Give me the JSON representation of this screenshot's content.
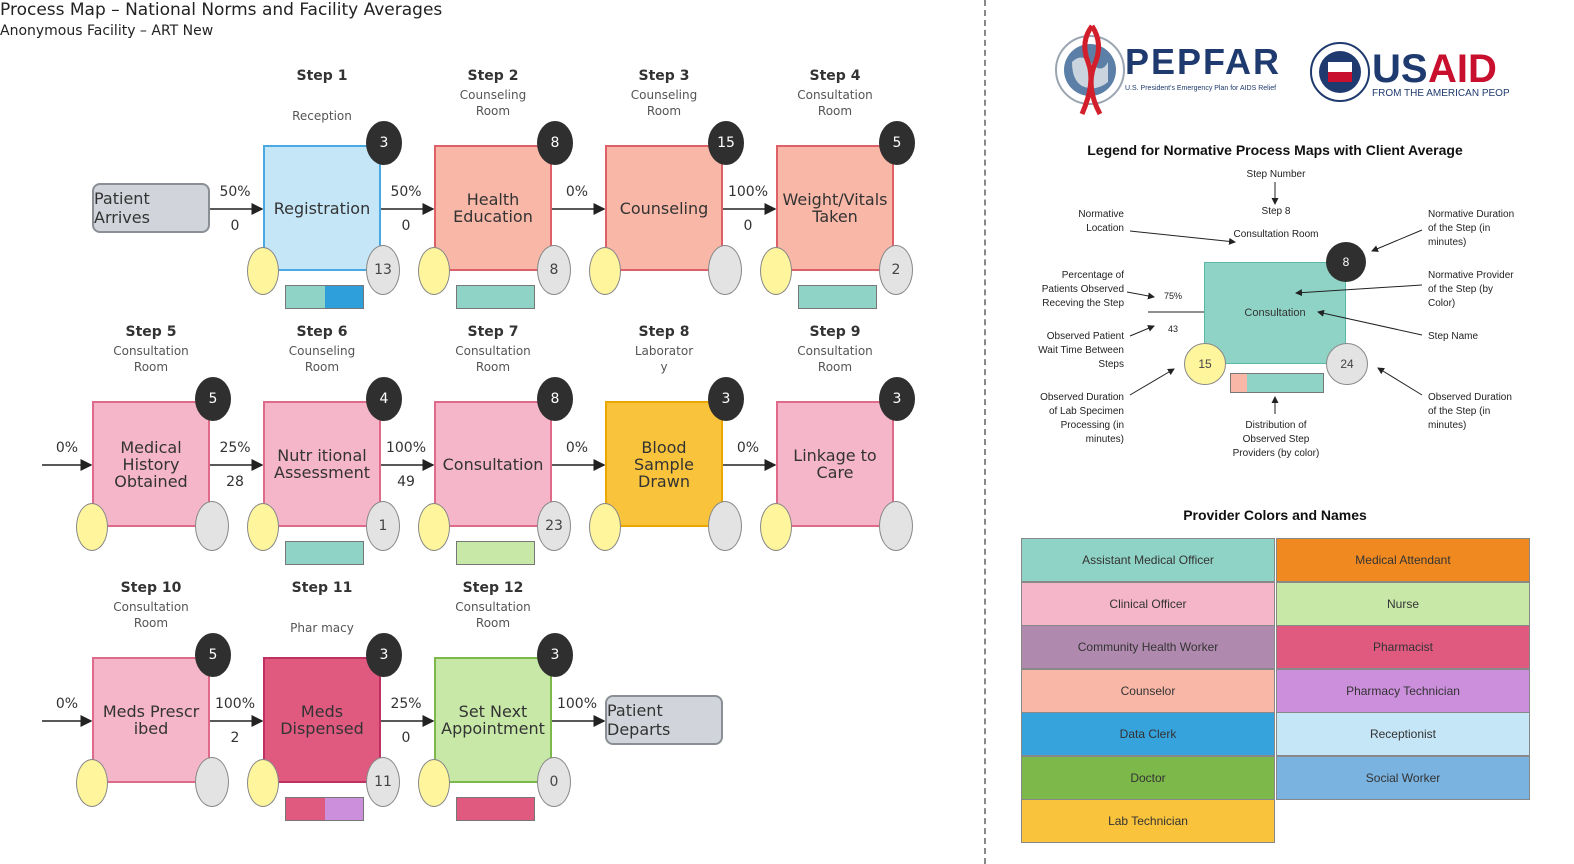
{
  "header": {
    "title": "Process Map – National Norms and Facility Averages",
    "subtitle": "Anonymous Facility – ART New"
  },
  "endpoints": {
    "start": "Patient Arrives",
    "end": "Patient Departs"
  },
  "steps": [
    {
      "step_label": "Step 1",
      "location": "Reception",
      "name": "Registration",
      "normative_duration": "3",
      "observed_duration": "13",
      "pct_in": "50%",
      "wait_in": "0",
      "color": "#c5e6f7",
      "border": "#4aa9e0",
      "providers": [
        "#8fd3c7",
        "#2e9fdb"
      ]
    },
    {
      "step_label": "Step 2",
      "location": "Counseling Room",
      "name": "Health Education",
      "normative_duration": "8",
      "observed_duration": "8",
      "pct_in": "50%",
      "wait_in": "0",
      "color": "#f9b7a7",
      "border": "#e0606a",
      "providers": [
        "#8fd3c7"
      ]
    },
    {
      "step_label": "Step 3",
      "location": "Counseling Room",
      "name": "Counseling",
      "normative_duration": "15",
      "observed_duration": "",
      "pct_in": "0%",
      "wait_in": "",
      "color": "#f9b7a7",
      "border": "#e0606a",
      "providers": []
    },
    {
      "step_label": "Step 4",
      "location": "Consultation Room",
      "name": "Weight/Vitals Taken",
      "normative_duration": "5",
      "observed_duration": "2",
      "pct_in": "100%",
      "wait_in": "0",
      "color": "#f9b7a7",
      "border": "#e0606a",
      "providers": [
        "#8fd3c7"
      ]
    },
    {
      "step_label": "Step 5",
      "location": "Consultation Room",
      "name": "Medical History Obtained",
      "normative_duration": "5",
      "observed_duration": "",
      "pct_in": "0%",
      "wait_in": "",
      "color": "#f4b6c8",
      "border": "#e06a8a",
      "providers": []
    },
    {
      "step_label": "Step 6",
      "location": "Counseling Room",
      "name": "Nutr itional Assessment",
      "normative_duration": "4",
      "observed_duration": "1",
      "pct_in": "25%",
      "wait_in": "28",
      "color": "#f4b6c8",
      "border": "#e06a8a",
      "providers": [
        "#8fd3c7"
      ]
    },
    {
      "step_label": "Step 7",
      "location": "Consultation Room",
      "name": "Consultation",
      "normative_duration": "8",
      "observed_duration": "23",
      "pct_in": "100%",
      "wait_in": "49",
      "color": "#f4b6c8",
      "border": "#e06a8a",
      "providers": [
        "#c8e8a8"
      ]
    },
    {
      "step_label": "Step 8",
      "location": "Laborator y",
      "name": "Blood Sample Drawn",
      "normative_duration": "3",
      "observed_duration": "",
      "pct_in": "0%",
      "wait_in": "",
      "color": "#f9c33b",
      "border": "#e9a700",
      "providers": []
    },
    {
      "step_label": "Step 9",
      "location": "Consultation Room",
      "name": "Linkage to Care",
      "normative_duration": "3",
      "observed_duration": "",
      "pct_in": "0%",
      "wait_in": "",
      "color": "#f4b6c8",
      "border": "#e06a8a",
      "providers": []
    },
    {
      "step_label": "Step 10",
      "location": "Consultation Room",
      "name": "Meds Prescr ibed",
      "normative_duration": "5",
      "observed_duration": "",
      "pct_in": "0%",
      "wait_in": "",
      "color": "#f4b6c8",
      "border": "#e06a8a",
      "providers": []
    },
    {
      "step_label": "Step 11",
      "location": "Phar macy",
      "name": "Meds Dispensed",
      "normative_duration": "3",
      "observed_duration": "11",
      "pct_in": "100%",
      "wait_in": "2",
      "color": "#e05a80",
      "border": "#c03060",
      "providers": [
        "#e05a80",
        "#cc8fdc"
      ]
    },
    {
      "step_label": "Step 12",
      "location": "Consultation Room",
      "name": "Set Next Appointment",
      "normative_duration": "3",
      "observed_duration": "0",
      "pct_in": "25%",
      "wait_in": "0",
      "color": "#c8e8a8",
      "border": "#7cb84a",
      "providers": [
        "#e05a80"
      ]
    }
  ],
  "final_pct": "100%",
  "logos": {
    "pepfar_name": "PEPFAR",
    "pepfar_tagline": "U.S. President's Emergency Plan for AIDS Relief",
    "usaid_name": "USAID",
    "usaid_tagline": "FROM THE AMERICAN PEOPLE"
  },
  "legend": {
    "title": "Legend for Normative Process Maps with Client Average",
    "step_number_label": "Step Number",
    "sample_step": "Step 8",
    "sample_location": "Consultation Room",
    "sample_name": "Consultation",
    "sample_norm_duration": "8",
    "sample_wait_oval": "15",
    "sample_obs_oval": "24",
    "sample_pct": "75%",
    "sample_wait": "43",
    "normative_location": "Normative Location",
    "pct_observed": "Percentage of Patients Observed Receving the Step",
    "observed_wait": "Observed Patient Wait Time Between Steps",
    "observed_lab": "Observed Duration of Lab Specimen Processing (in minutes)",
    "distribution": "Distribution of Observed Step Providers (by color)",
    "normative_duration": "Normative Duration of the Step (in minutes)",
    "normative_provider": "Normative Provider of the Step (by Color)",
    "step_name": "Step Name",
    "observed_duration": "Observed Duration of the Step (in minutes)"
  },
  "providers": {
    "title": "Provider Colors and Names",
    "items": [
      {
        "name": "Assistant Medical Officer",
        "color": "#8fd3c7"
      },
      {
        "name": "Medical Attendant",
        "color": "#f08a20"
      },
      {
        "name": "Clinical Officer",
        "color": "#f4b6c8"
      },
      {
        "name": "Nurse",
        "color": "#c8e8a8"
      },
      {
        "name": "Community Health Worker",
        "color": "#b08aae"
      },
      {
        "name": "Pharmacist",
        "color": "#e05a80"
      },
      {
        "name": "Counselor",
        "color": "#f9b7a7"
      },
      {
        "name": "Pharmacy Technician",
        "color": "#cc8fdc"
      },
      {
        "name": "Data Clerk",
        "color": "#36a3dd"
      },
      {
        "name": "Receptionist",
        "color": "#c5e6f7"
      },
      {
        "name": "Doctor",
        "color": "#7cb84a"
      },
      {
        "name": "Social Worker",
        "color": "#7ab2e0"
      },
      {
        "name": "Lab Technician",
        "color": "#f9c33b"
      }
    ]
  }
}
